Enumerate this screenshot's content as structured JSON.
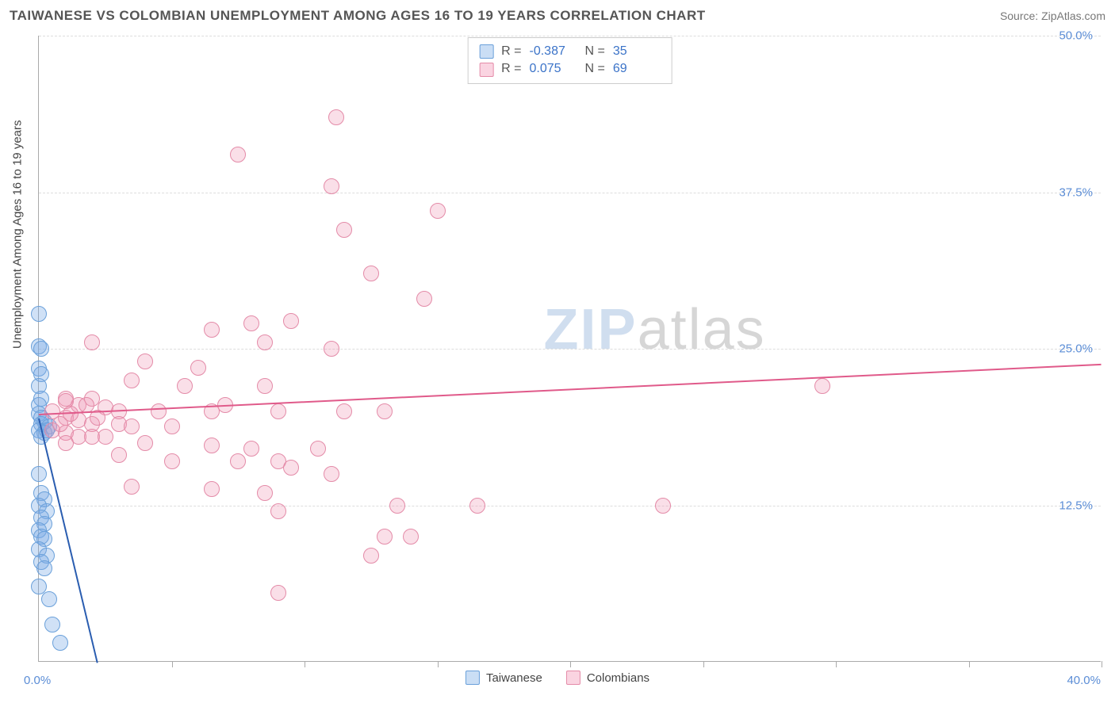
{
  "title": "TAIWANESE VS COLOMBIAN UNEMPLOYMENT AMONG AGES 16 TO 19 YEARS CORRELATION CHART",
  "source": "Source: ZipAtlas.com",
  "y_axis_label": "Unemployment Among Ages 16 to 19 years",
  "watermark_a": "ZIP",
  "watermark_b": "atlas",
  "chart": {
    "type": "scatter",
    "xlim": [
      0,
      40
    ],
    "ylim": [
      0,
      50
    ],
    "x_ticks": [
      0,
      5,
      10,
      15,
      20,
      25,
      30,
      35,
      40
    ],
    "y_grid": [
      12.5,
      25.0,
      37.5,
      50.0
    ],
    "x_label_0": "0.0%",
    "x_label_max": "40.0%",
    "y_tick_labels": {
      "12.5": "12.5%",
      "25.0": "25.0%",
      "37.5": "37.5%",
      "50.0": "50.0%"
    },
    "background_color": "#ffffff",
    "grid_color": "#dddddd",
    "axis_color": "#aaaaaa",
    "point_radius": 10,
    "series": [
      {
        "name": "Taiwanese",
        "fill": "rgba(120,170,230,0.35)",
        "stroke": "#6aa0da",
        "trend_color": "#2a5db0",
        "trend": {
          "x1": 0,
          "y1": 19.5,
          "x2": 2.2,
          "y2": 0
        },
        "r_label": "R =",
        "r_value": "-0.387",
        "n_label": "N =",
        "n_value": "35",
        "swatch_fill": "rgba(150,190,235,0.5)",
        "swatch_border": "#6aa0da",
        "points": [
          [
            0.0,
            27.8
          ],
          [
            0.0,
            25.2
          ],
          [
            0.1,
            25.0
          ],
          [
            0.0,
            23.4
          ],
          [
            0.1,
            23.0
          ],
          [
            0.0,
            22.0
          ],
          [
            0.1,
            21.0
          ],
          [
            0.0,
            20.5
          ],
          [
            0.0,
            19.8
          ],
          [
            0.1,
            19.5
          ],
          [
            0.2,
            19.2
          ],
          [
            0.1,
            19.0
          ],
          [
            0.4,
            18.8
          ],
          [
            0.0,
            18.5
          ],
          [
            0.2,
            18.3
          ],
          [
            0.1,
            18.0
          ],
          [
            0.0,
            15.0
          ],
          [
            0.1,
            13.5
          ],
          [
            0.2,
            13.0
          ],
          [
            0.0,
            12.5
          ],
          [
            0.3,
            12.0
          ],
          [
            0.1,
            11.5
          ],
          [
            0.2,
            11.0
          ],
          [
            0.0,
            10.5
          ],
          [
            0.1,
            10.0
          ],
          [
            0.2,
            9.8
          ],
          [
            0.0,
            9.0
          ],
          [
            0.3,
            8.5
          ],
          [
            0.1,
            8.0
          ],
          [
            0.2,
            7.5
          ],
          [
            0.0,
            6.0
          ],
          [
            0.4,
            5.0
          ],
          [
            0.5,
            3.0
          ],
          [
            0.8,
            1.5
          ],
          [
            0.3,
            18.5
          ]
        ]
      },
      {
        "name": "Colombians",
        "fill": "rgba(240,150,180,0.30)",
        "stroke": "#e48ba8",
        "trend_color": "#e05a8a",
        "trend": {
          "x1": 0,
          "y1": 19.8,
          "x2": 40,
          "y2": 23.8
        },
        "r_label": "R =",
        "r_value": "0.075",
        "n_label": "N =",
        "n_value": "69",
        "swatch_fill": "rgba(245,170,195,0.5)",
        "swatch_border": "#e48ba8",
        "points": [
          [
            11.2,
            43.5
          ],
          [
            11.0,
            38.0
          ],
          [
            7.5,
            40.5
          ],
          [
            15.0,
            36.0
          ],
          [
            11.5,
            34.5
          ],
          [
            12.5,
            31.0
          ],
          [
            14.5,
            29.0
          ],
          [
            8.0,
            27.0
          ],
          [
            9.5,
            27.2
          ],
          [
            8.5,
            25.5
          ],
          [
            2.0,
            25.5
          ],
          [
            6.5,
            26.5
          ],
          [
            11.0,
            25.0
          ],
          [
            4.0,
            24.0
          ],
          [
            6.0,
            23.5
          ],
          [
            3.5,
            22.5
          ],
          [
            5.5,
            22.0
          ],
          [
            8.5,
            22.0
          ],
          [
            29.5,
            22.0
          ],
          [
            1.0,
            21.0
          ],
          [
            1.5,
            20.5
          ],
          [
            2.5,
            20.3
          ],
          [
            3.0,
            20.0
          ],
          [
            4.5,
            20.0
          ],
          [
            6.5,
            20.0
          ],
          [
            9.0,
            20.0
          ],
          [
            11.5,
            20.0
          ],
          [
            13.0,
            20.0
          ],
          [
            1.0,
            19.5
          ],
          [
            1.5,
            19.3
          ],
          [
            2.0,
            19.0
          ],
          [
            3.0,
            19.0
          ],
          [
            3.5,
            18.8
          ],
          [
            5.0,
            18.8
          ],
          [
            0.5,
            18.5
          ],
          [
            1.0,
            18.3
          ],
          [
            1.5,
            18.0
          ],
          [
            2.0,
            18.0
          ],
          [
            2.5,
            18.0
          ],
          [
            1.0,
            17.5
          ],
          [
            4.0,
            17.5
          ],
          [
            6.5,
            17.3
          ],
          [
            8.0,
            17.0
          ],
          [
            10.5,
            17.0
          ],
          [
            3.0,
            16.5
          ],
          [
            5.0,
            16.0
          ],
          [
            7.5,
            16.0
          ],
          [
            9.0,
            16.0
          ],
          [
            9.5,
            15.5
          ],
          [
            11.0,
            15.0
          ],
          [
            3.5,
            14.0
          ],
          [
            6.5,
            13.8
          ],
          [
            8.5,
            13.5
          ],
          [
            13.5,
            12.5
          ],
          [
            16.5,
            12.5
          ],
          [
            23.5,
            12.5
          ],
          [
            9.0,
            12.0
          ],
          [
            13.0,
            10.0
          ],
          [
            14.0,
            10.0
          ],
          [
            12.5,
            8.5
          ],
          [
            9.0,
            5.5
          ],
          [
            1.0,
            20.8
          ],
          [
            2.0,
            21.0
          ],
          [
            0.8,
            19.0
          ],
          [
            1.2,
            19.8
          ],
          [
            0.5,
            20.0
          ],
          [
            1.8,
            20.5
          ],
          [
            2.2,
            19.5
          ],
          [
            7.0,
            20.5
          ]
        ]
      }
    ]
  },
  "legend": {
    "items": [
      {
        "label": "Taiwanese",
        "swatch_fill": "rgba(150,190,235,0.5)",
        "swatch_border": "#6aa0da"
      },
      {
        "label": "Colombians",
        "swatch_fill": "rgba(245,170,195,0.5)",
        "swatch_border": "#e48ba8"
      }
    ]
  }
}
